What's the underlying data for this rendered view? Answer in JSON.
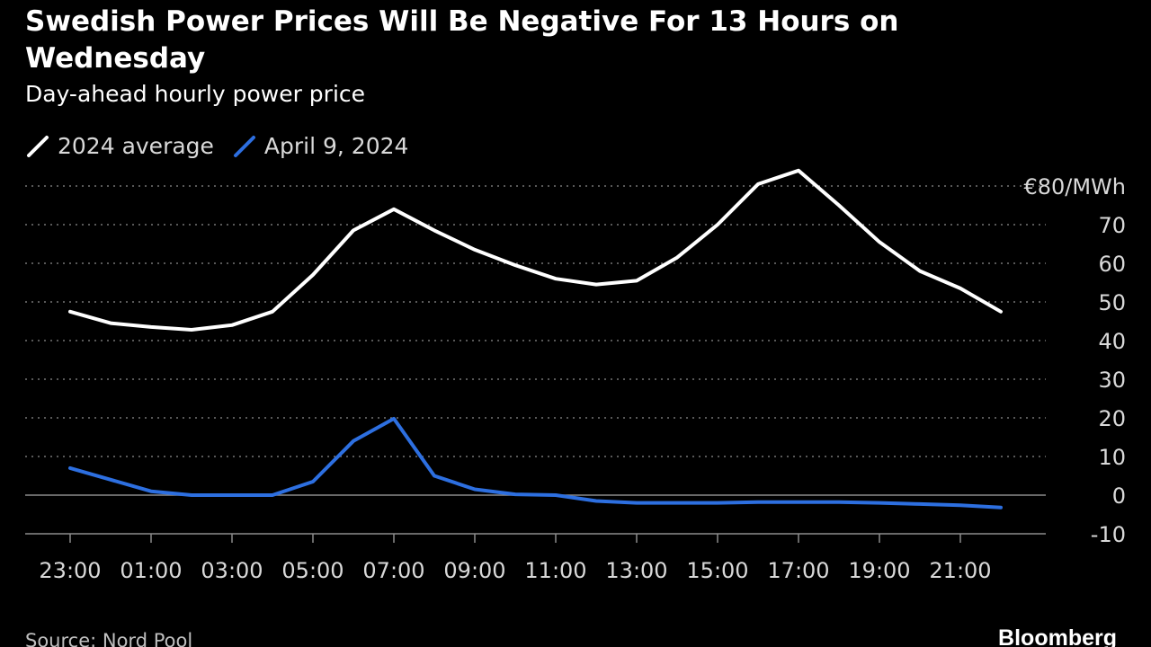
{
  "chart_data": {
    "type": "line",
    "title": "Swedish Power Prices Will Be Negative For 13 Hours on Wednesday",
    "subtitle": "Day-ahead hourly power price",
    "unit_label": "€80/MWh",
    "x": [
      "23:00",
      "00:00",
      "01:00",
      "02:00",
      "03:00",
      "04:00",
      "05:00",
      "06:00",
      "07:00",
      "08:00",
      "09:00",
      "10:00",
      "11:00",
      "12:00",
      "13:00",
      "14:00",
      "15:00",
      "16:00",
      "17:00",
      "18:00",
      "19:00",
      "20:00",
      "21:00",
      "22:00"
    ],
    "x_tick_labels": [
      "23:00",
      "01:00",
      "03:00",
      "05:00",
      "07:00",
      "09:00",
      "11:00",
      "13:00",
      "15:00",
      "17:00",
      "19:00",
      "21:00"
    ],
    "y_tick_labels": [
      "€80/MWh",
      "70",
      "60",
      "50",
      "40",
      "30",
      "20",
      "10",
      "0",
      "-10"
    ],
    "ylim": [
      -10,
      80
    ],
    "y_ticks": [
      80,
      70,
      60,
      50,
      40,
      30,
      20,
      10,
      0,
      -10
    ],
    "grid": true,
    "legend_position": "top-left",
    "series": [
      {
        "name": "2024 average",
        "color": "#ffffff",
        "values": [
          47.5,
          44.5,
          43.5,
          42.8,
          44.0,
          47.5,
          57.0,
          68.5,
          74.0,
          68.5,
          63.5,
          59.5,
          56.0,
          54.5,
          55.5,
          61.5,
          70.0,
          80.5,
          84.0,
          75.0,
          65.5,
          58.0,
          53.5,
          47.5
        ]
      },
      {
        "name": "April 9, 2024",
        "color": "#2d6fe0",
        "values": [
          7.0,
          4.0,
          1.0,
          0.0,
          0.0,
          0.0,
          3.5,
          14.0,
          19.8,
          5.0,
          1.5,
          0.2,
          0.0,
          -1.5,
          -2.0,
          -2.0,
          -2.0,
          -1.8,
          -1.8,
          -1.8,
          -2.0,
          -2.3,
          -2.6,
          -3.2
        ]
      }
    ]
  },
  "source": "Source: Nord Pool",
  "brand": "Bloomberg",
  "colors": {
    "background": "#000000",
    "grid": "#8c8c8c",
    "zero_line": "#8c8c8c",
    "axis_text": "#d9d9d9"
  }
}
